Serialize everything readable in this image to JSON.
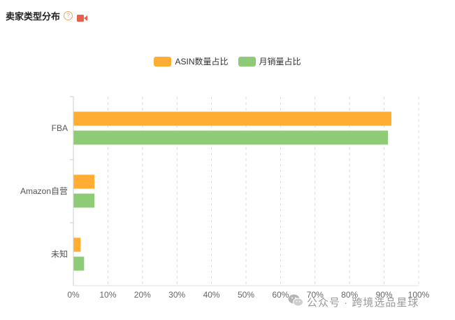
{
  "header": {
    "title": "卖家类型分布",
    "help_icon": "question-circle-icon",
    "video_icon": "video-camera-icon",
    "video_icon_color": "#e8604c"
  },
  "chart_data": {
    "type": "bar",
    "orientation": "horizontal",
    "categories": [
      "FBA",
      "Amazon自营",
      "未知"
    ],
    "series": [
      {
        "name": "ASIN数量占比",
        "color": "#ffad33",
        "values": [
          92,
          6,
          2
        ]
      },
      {
        "name": "月销量占比",
        "color": "#8ecb76",
        "values": [
          91,
          6,
          3
        ]
      }
    ],
    "xlim": [
      0,
      100
    ],
    "xticks": [
      "0%",
      "10%",
      "20%",
      "30%",
      "40%",
      "50%",
      "60%",
      "70%",
      "80%",
      "90%",
      "100%"
    ],
    "grid": true,
    "legend_position": "top-center"
  },
  "watermark": {
    "icon": "wechat-icon",
    "text": "公众号 · 跨境选品星球"
  }
}
